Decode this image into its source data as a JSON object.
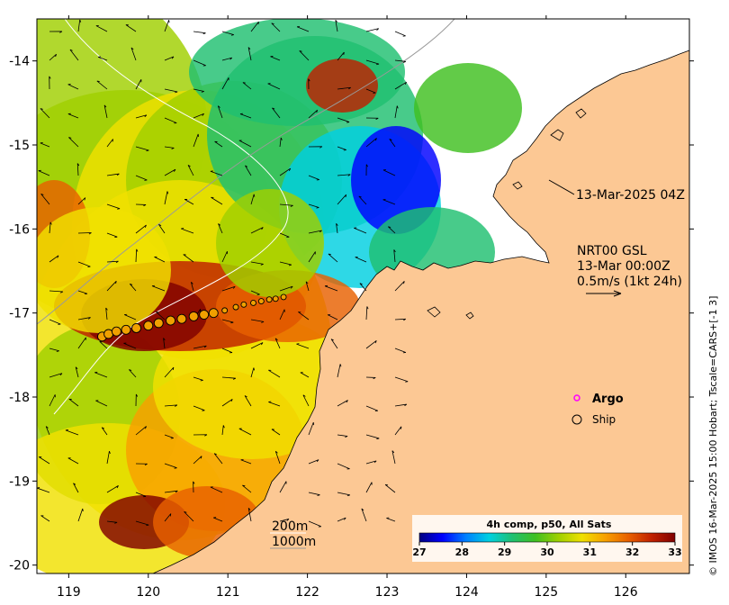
{
  "map": {
    "lon_range": [
      118.6,
      126.8
    ],
    "lat_range": [
      -20.1,
      -13.5
    ],
    "x_ticks": [
      119,
      120,
      121,
      122,
      123,
      124,
      125,
      126
    ],
    "y_ticks": [
      -14,
      -15,
      -16,
      -17,
      -18,
      -19,
      -20
    ],
    "land_color": "#fcc894",
    "nodata_color": "#ffffff"
  },
  "colorbar": {
    "title": "4h comp, p50, All Sats",
    "min": 27,
    "max": 33,
    "tick_labels": [
      "27",
      "28",
      "29",
      "30",
      "31",
      "32",
      "33"
    ],
    "colors": [
      "#00007f",
      "#0000ff",
      "#0080ff",
      "#00d0e0",
      "#20c070",
      "#40c020",
      "#a0d000",
      "#f0e000",
      "#f8a000",
      "#e86000",
      "#c02000",
      "#800000"
    ]
  },
  "annotations": {
    "sst_time": "13-Mar-2025 04Z",
    "current_title": "NRT00 GSL",
    "current_time": "13-Mar 00:00Z",
    "current_scale": "0.5m/s (1kt 24h)",
    "isobath_200": "200m",
    "isobath_1000": "1000m"
  },
  "legend": {
    "argo_label": "Argo",
    "ship_label": "Ship",
    "argo_color": "#ff00ff"
  },
  "ship_track": {
    "lon": [
      119.42,
      119.5,
      119.6,
      119.72,
      119.85,
      120.0,
      120.13,
      120.28,
      120.42,
      120.57,
      120.7,
      120.82,
      120.96,
      121.1,
      121.2,
      121.32,
      121.42,
      121.52,
      121.6,
      121.7
    ],
    "lat": [
      -17.28,
      -17.25,
      -17.22,
      -17.2,
      -17.18,
      -17.15,
      -17.12,
      -17.09,
      -17.07,
      -17.04,
      -17.02,
      -17.0,
      -16.97,
      -16.93,
      -16.9,
      -16.88,
      -16.86,
      -16.84,
      -16.83,
      -16.81
    ]
  },
  "credit": "© IMOS 16-Mar-2025 15:00 Hobart; Tscale=CARS+[-1 3]"
}
